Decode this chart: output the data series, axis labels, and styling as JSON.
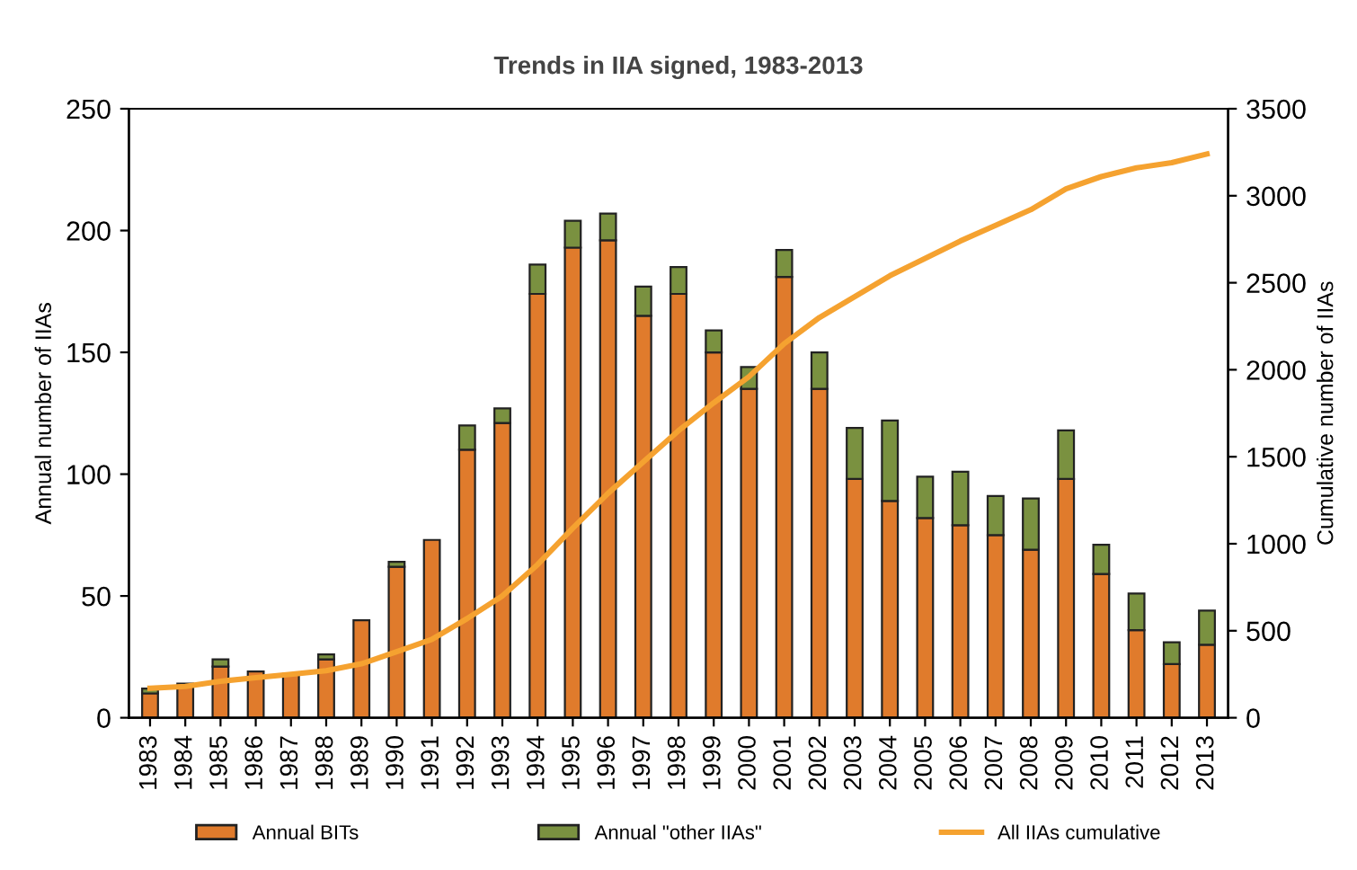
{
  "chart_data": {
    "type": "bar",
    "title": "Trends in IIA signed, 1983-2013",
    "ylabel": "Annual number of IIAs",
    "y2label": "Cumulative number of IIAs",
    "categories": [
      "1983",
      "1984",
      "1985",
      "1986",
      "1987",
      "1988",
      "1989",
      "1990",
      "1991",
      "1992",
      "1993",
      "1994",
      "1995",
      "1996",
      "1997",
      "1998",
      "1999",
      "2000",
      "2001",
      "2002",
      "2003",
      "2004",
      "2005",
      "2006",
      "2007",
      "2008",
      "2009",
      "2010",
      "2011",
      "2012",
      "2013"
    ],
    "stacked": true,
    "series": [
      {
        "name": "Annual BITs",
        "color": "#e07b2c",
        "values": [
          10,
          14,
          21,
          19,
          18,
          24,
          40,
          62,
          73,
          110,
          121,
          174,
          193,
          196,
          165,
          174,
          150,
          135,
          181,
          135,
          98,
          89,
          82,
          79,
          75,
          69,
          98,
          59,
          36,
          22,
          30
        ]
      },
      {
        "name": "Annual \"other IIAs\"",
        "color": "#7a9140",
        "values": [
          2,
          null,
          3,
          null,
          null,
          2,
          null,
          2,
          null,
          10,
          6,
          12,
          11,
          11,
          12,
          11,
          9,
          9,
          11,
          15,
          21,
          33,
          17,
          22,
          16,
          21,
          20,
          12,
          15,
          9,
          14
        ]
      },
      {
        "name": "All IIAs cumulative",
        "type": "line",
        "axis": "y2",
        "color": "#f5a230",
        "values": [
          170,
          180,
          210,
          230,
          250,
          270,
          310,
          380,
          450,
          570,
          700,
          880,
          1090,
          1290,
          1470,
          1650,
          1810,
          1960,
          2150,
          2300,
          2420,
          2540,
          2640,
          2740,
          2830,
          2920,
          3040,
          3110,
          3160,
          3190,
          3240
        ]
      }
    ],
    "ylim": [
      0,
      250
    ],
    "yticks": [
      0,
      50,
      100,
      150,
      200,
      250
    ],
    "y2lim": [
      0,
      3500
    ],
    "y2ticks": [
      0,
      500,
      1000,
      1500,
      2000,
      2500,
      3000,
      3500
    ],
    "grid": false,
    "legend": "bottom",
    "marker": "none",
    "line_style": "solid"
  }
}
